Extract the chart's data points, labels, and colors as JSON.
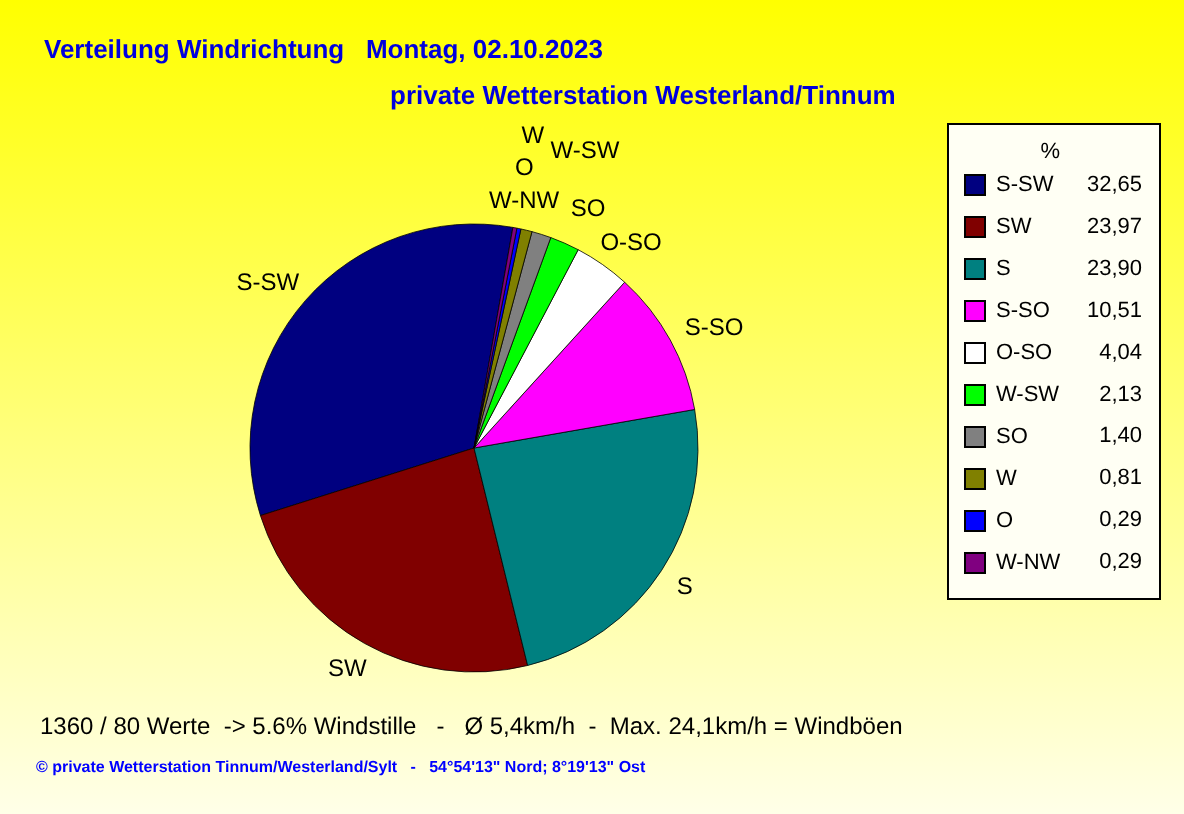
{
  "chart_data": {
    "type": "pie",
    "title": "Verteilung Windrichtung   Montag, 02.10.2023",
    "subtitle": "private Wetterstation Westerland/Tinnum",
    "legend_title": "%",
    "legend": "right",
    "categories": [
      "S-SW",
      "SW",
      "S",
      "S-SO",
      "O-SO",
      "W-SW",
      "SO",
      "W",
      "O",
      "W-NW"
    ],
    "values": [
      32.65,
      23.97,
      23.9,
      10.51,
      4.04,
      2.13,
      1.4,
      0.81,
      0.29,
      0.29
    ],
    "value_labels": [
      "32,65",
      "23,97",
      "23,90",
      "10,51",
      "4,04",
      "2,13",
      "1,40",
      "0,81",
      "0,29",
      "0,29"
    ],
    "colors": [
      "#000080",
      "#800000",
      "#008080",
      "#ff00ff",
      "#ffffff",
      "#00ff00",
      "#808080",
      "#808000",
      "#0000ff",
      "#800080"
    ],
    "annotations": [
      "1360 / 80 Werte  -> 5.6% Windstille   -   Ø 5,4km/h  -  Max. 24,1km/h = Windböen",
      "© private Wetterstation Tinnum/Westerland/Sylt   -   54°54'13\" Nord; 8°19'13\" Ost"
    ]
  }
}
